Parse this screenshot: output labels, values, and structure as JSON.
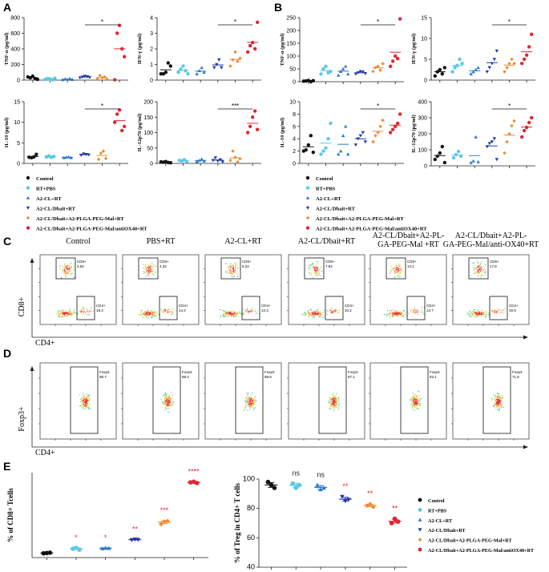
{
  "colors": [
    "#111111",
    "#5bc8e8",
    "#2a78c8",
    "#2437a8",
    "#f08a30",
    "#e0262e"
  ],
  "panel_letters": {
    "A": "A",
    "B": "B",
    "C": "C",
    "D": "D",
    "E": "E"
  },
  "legend": [
    "Control",
    "RT+PBS",
    "A2-CL+RT",
    "A2-CL/Dbait+RT",
    "A2-CL/Dbait+A2-PLGA-PEG-Mal+RT",
    "A2-CL/Dbait+A2-PLGA-PEG-Mal/antiOX40+RT"
  ],
  "flow_c": {
    "titles": [
      [
        "Control"
      ],
      [
        "PBS+RT"
      ],
      [
        "A2-CL+RT"
      ],
      [
        "A2-CL/Dbait+RT"
      ],
      [
        "A2-CL/Dbait+A2-PL-",
        "GA-PEG-Mal +RT"
      ],
      [
        "A2-CL/Dbait+A2-PL-",
        "GA-PEG-Mal/anti-OX40+RT"
      ]
    ],
    "cd8_values": [
      "3.62",
      "4.32",
      "5.22",
      "7.94",
      "13.2",
      "17.8"
    ],
    "cd4_values": [
      "18.3",
      "14.4",
      "12.3",
      "10.2",
      "14.7",
      "15.9"
    ],
    "gate_cd8": "CD8+",
    "gate_cd4": "CD4+",
    "y_label": "CD8+",
    "x_label": "CD4+"
  },
  "flow_d": {
    "values": [
      "98.7",
      "98.4",
      "98.8",
      "87.1",
      "83.1",
      "71.8"
    ],
    "gate": "Foxp3",
    "y_label": "Foxp3+",
    "x_label": "CD4+"
  },
  "chart_data": [
    {
      "type": "scatter",
      "panel": "A",
      "title": "",
      "ylabel": "TNF-α (pg/ml)",
      "ylim": [
        0,
        800
      ],
      "yticks": [
        "0",
        "200",
        "400",
        "600",
        "800"
      ],
      "groups": [
        [
          40,
          30,
          50,
          20,
          10
        ],
        [
          10,
          20,
          15,
          5,
          25
        ],
        [
          5,
          15,
          10,
          20,
          8
        ],
        [
          30,
          40,
          50,
          45,
          35
        ],
        [
          20,
          60,
          30,
          40,
          10
        ],
        [
          5,
          600,
          700,
          400,
          300
        ]
      ],
      "sig": {
        "from": 3,
        "to": 5,
        "label": "*"
      }
    },
    {
      "type": "scatter",
      "panel": "A",
      "ylabel": "IFN-γ (pg/ml)",
      "ylim": [
        0,
        4
      ],
      "yticks": [
        "0",
        "1",
        "2",
        "3",
        "4"
      ],
      "groups": [
        [
          0.4,
          0.4,
          0.5,
          1.1,
          0.9
        ],
        [
          0.5,
          0.7,
          0.9,
          0.6,
          0.4
        ],
        [
          0.4,
          0.6,
          0.8,
          0.5
        ],
        [
          0.8,
          1.0,
          1.3,
          0.8
        ],
        [
          0.9,
          1.3,
          1.8,
          1.2,
          1.4
        ],
        [
          1.8,
          2.2,
          2.4,
          2.0,
          3.7
        ]
      ],
      "sig": {
        "from": 3,
        "to": 5,
        "label": "*"
      }
    },
    {
      "type": "scatter",
      "panel": "A",
      "ylabel": "IL-10 (pg/ml)",
      "ylim": [
        0,
        15
      ],
      "yticks": [
        "0",
        "5",
        "10",
        "15"
      ],
      "groups": [
        [
          1.5,
          1.4,
          1.6,
          2.2
        ],
        [
          1.6,
          1.8,
          1.5,
          1.7
        ],
        [
          1.4,
          1.5,
          1.6,
          1.4
        ],
        [
          2.0,
          2.3,
          2.2,
          2.1
        ],
        [
          1.0,
          2.5,
          3.0,
          1.2
        ],
        [
          10,
          12,
          13,
          8,
          9
        ]
      ],
      "sig": {
        "from": 3,
        "to": 5,
        "label": "*"
      }
    },
    {
      "type": "scatter",
      "panel": "A",
      "ylabel": "IL-12p70 (pg/ml)",
      "ylim": [
        0,
        200
      ],
      "yticks": [
        "0",
        "50",
        "100",
        "150",
        "200"
      ],
      "groups": [
        [
          5,
          4,
          6,
          3,
          2
        ],
        [
          10,
          8,
          12,
          6
        ],
        [
          6,
          10,
          14,
          8
        ],
        [
          10,
          18,
          8,
          12,
          5
        ],
        [
          10,
          40,
          20,
          5,
          15
        ],
        [
          100,
          120,
          150,
          170,
          110
        ]
      ],
      "sig": {
        "from": 3,
        "to": 5,
        "label": "***"
      }
    },
    {
      "type": "scatter",
      "panel": "B",
      "ylabel": "TNF-α (pg/ml)",
      "ylim": [
        0,
        250
      ],
      "yticks": [
        "0",
        "50",
        "100",
        "150",
        "200",
        "250"
      ],
      "groups": [
        [
          2,
          3,
          5,
          0,
          4
        ],
        [
          30,
          50,
          60,
          35,
          40
        ],
        [
          25,
          40,
          50,
          60,
          30
        ],
        [
          30,
          35,
          40,
          38,
          32
        ],
        [
          40,
          55,
          60,
          45,
          70
        ],
        [
          60,
          80,
          100,
          90,
          245
        ]
      ],
      "sig": {
        "from": 3,
        "to": 5,
        "label": "*"
      }
    },
    {
      "type": "scatter",
      "panel": "B",
      "ylabel": "IFN-γ (pg/ml)",
      "ylim": [
        0,
        15
      ],
      "yticks": [
        "0",
        "5",
        "10",
        "15"
      ],
      "groups": [
        [
          1,
          2,
          2.5,
          1.5,
          3
        ],
        [
          2,
          3,
          3.5,
          5,
          4
        ],
        [
          1.5,
          2,
          2.5,
          3
        ],
        [
          2,
          3,
          4,
          5,
          7
        ],
        [
          2,
          3,
          4,
          5,
          4
        ],
        [
          4,
          5,
          6,
          8,
          11
        ]
      ],
      "sig": {
        "from": 3,
        "to": 5,
        "label": "*"
      }
    },
    {
      "type": "scatter",
      "panel": "B",
      "ylabel": "IL-10 (pg/ml)",
      "ylim": [
        0,
        10
      ],
      "yticks": [
        "0",
        "2",
        "4",
        "6",
        "8",
        "10"
      ],
      "groups": [
        [
          2,
          2.2,
          3,
          4.5,
          1.8
        ],
        [
          1.5,
          2,
          2.5,
          4,
          6.5
        ],
        [
          1.5,
          2,
          4.5,
          6,
          1.5
        ],
        [
          3,
          4,
          4.5,
          5,
          3.5
        ],
        [
          3.5,
          4.5,
          5,
          6,
          7
        ],
        [
          5,
          5.5,
          6,
          6.5,
          8
        ]
      ],
      "sig": {
        "from": 3,
        "to": 5,
        "label": "*"
      }
    },
    {
      "type": "scatter",
      "panel": "B",
      "ylabel": "IL-12p70 (pg/ml)",
      "ylim": [
        0,
        400
      ],
      "yticks": [
        "0",
        "100",
        "200",
        "300",
        "400"
      ],
      "groups": [
        [
          40,
          60,
          80,
          120,
          20
        ],
        [
          50,
          70,
          90,
          60
        ],
        [
          20,
          30,
          180,
          25
        ],
        [
          120,
          140,
          150,
          170,
          40
        ],
        [
          80,
          150,
          200,
          250,
          280
        ],
        [
          180,
          220,
          240,
          270,
          300
        ]
      ],
      "sig": {
        "from": 3,
        "to": 5,
        "label": "*"
      }
    },
    {
      "type": "scatter",
      "panel": "E",
      "ylabel": "% of CD8+ Tcells",
      "ylim": [
        2,
        30
      ],
      "yticks": [],
      "groups": [
        [
          3.4,
          3.5,
          3.6
        ],
        [
          4.9,
          5.2,
          4.6
        ],
        [
          5.0,
          5.2,
          5.1
        ],
        [
          7.8,
          8.0,
          7.9
        ],
        [
          13.0,
          13.9,
          14.1
        ],
        [
          26.8,
          27.0,
          26.6
        ]
      ],
      "marks": [
        "",
        "*",
        "*",
        "**",
        "***",
        "****"
      ]
    },
    {
      "type": "scatter",
      "panel": "E",
      "ylabel": "% of Treg in CD4+ T cells",
      "ylim": [
        40,
        100
      ],
      "yticks": [
        "40",
        "60",
        "80",
        "100"
      ],
      "groups": [
        [
          98,
          96,
          94
        ],
        [
          97,
          94,
          96
        ],
        [
          96,
          93,
          94
        ],
        [
          88,
          85,
          86
        ],
        [
          82,
          83,
          81
        ],
        [
          70,
          73,
          71
        ]
      ],
      "marks": [
        "",
        "ns",
        "ns",
        "**",
        "**",
        "**"
      ]
    }
  ]
}
